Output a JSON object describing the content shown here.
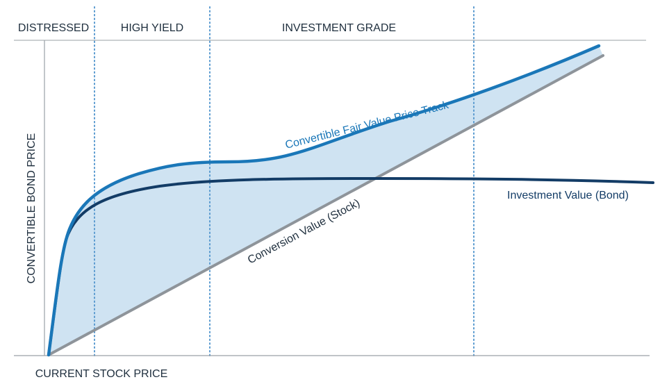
{
  "zones": [
    {
      "label": "DISTRESSED"
    },
    {
      "label": "HIGH YIELD"
    },
    {
      "label": "INVESTMENT GRADE"
    }
  ],
  "axes": {
    "y_label": "CONVERTIBLE BOND PRICE",
    "x_label": "CURRENT STOCK PRICE"
  },
  "curves": {
    "fair_value": {
      "label": "Convertible Fair Value Price Track",
      "color": "#1a77b8"
    },
    "investment_value": {
      "label": "Investment Value (Bond)",
      "color": "#133c66"
    },
    "conversion_value": {
      "label": "Conversion Value (Stock)",
      "color": "#8e949a"
    }
  },
  "colors": {
    "band_fill": "#cfe3f2",
    "divider": "#5b9bd0",
    "axis": "#9aa0a6",
    "text": "#1f2f3e"
  }
}
